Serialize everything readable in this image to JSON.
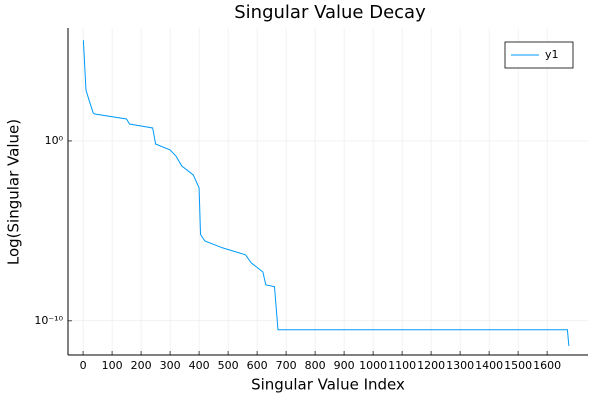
{
  "chart_data": {
    "type": "line",
    "title": "Singular Value Decay",
    "xlabel": "Singular Value Index",
    "ylabel": "Log(Singular Value)",
    "x": [
      1,
      10,
      20,
      35,
      40,
      150,
      160,
      240,
      250,
      300,
      320,
      340,
      380,
      400,
      405,
      420,
      480,
      560,
      580,
      620,
      630,
      660,
      672,
      1670,
      1675
    ],
    "series": [
      {
        "name": "y1",
        "color": "#009af9",
        "values": [
          398000,
          676,
          200,
          35.5,
          31.6,
          16.6,
          8.7,
          5.25,
          0.68,
          0.316,
          0.148,
          0.041,
          0.0129,
          0.00245,
          6.3e-06,
          2.75e-06,
          1.15e-06,
          4.7e-07,
          1.66e-07,
          5.2e-08,
          1e-08,
          7.9e-09,
          3.2e-11,
          3.2e-11,
          4e-12
        ]
      }
    ],
    "xlim": [
      -52,
      1741
    ],
    "xticks": [
      0,
      100,
      200,
      300,
      400,
      500,
      600,
      700,
      800,
      900,
      1000,
      1100,
      1200,
      1300,
      1400,
      1500,
      1600
    ],
    "ylim": [
      1.26e-12,
      1900000
    ],
    "yscale": "log",
    "yticks": [
      {
        "value": 1,
        "label": "10⁰"
      },
      {
        "value": 1e-10,
        "label": "10⁻¹⁰"
      }
    ],
    "grid": true,
    "legend": "topright"
  }
}
